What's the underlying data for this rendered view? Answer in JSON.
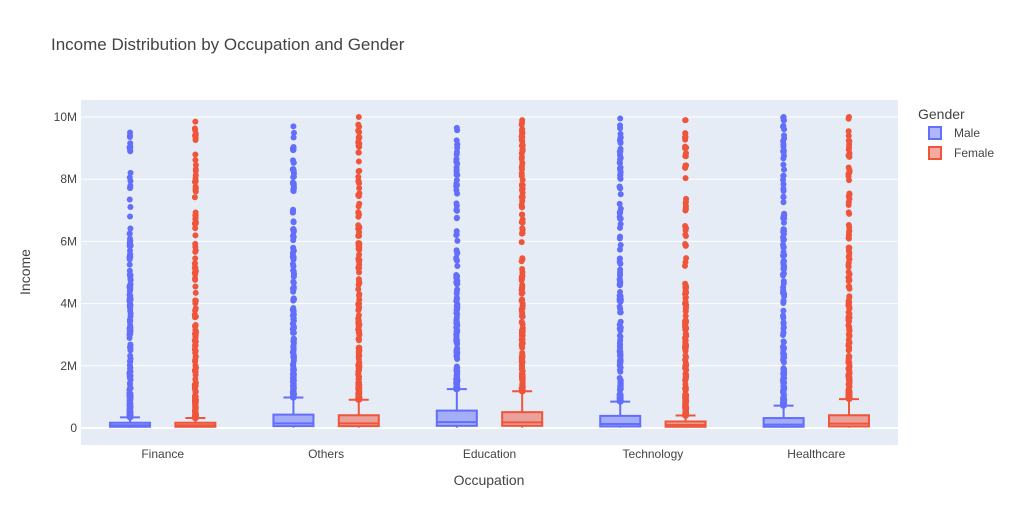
{
  "chart_data": {
    "type": "box",
    "title": "Income Distribution by Occupation and Gender",
    "xlabel": "Occupation",
    "ylabel": "Income",
    "ylim": [
      -500000,
      10500000
    ],
    "yticks": [
      {
        "value": 0,
        "label": "0"
      },
      {
        "value": 2000000,
        "label": "2M"
      },
      {
        "value": 4000000,
        "label": "4M"
      },
      {
        "value": 6000000,
        "label": "6M"
      },
      {
        "value": 8000000,
        "label": "8M"
      },
      {
        "value": 10000000,
        "label": "10M"
      }
    ],
    "categories": [
      "Finance",
      "Others",
      "Education",
      "Technology",
      "Healthcare"
    ],
    "legend": {
      "title": "Gender",
      "position": "right"
    },
    "series": [
      {
        "name": "Male",
        "color": "#636efa",
        "boxes": [
          {
            "min": 10000,
            "q1": 40000,
            "median": 90000,
            "q3": 170000,
            "upper_fence": 340000,
            "outlier_max": 9500000
          },
          {
            "min": 10000,
            "q1": 60000,
            "median": 150000,
            "q3": 430000,
            "upper_fence": 980000,
            "outlier_max": 9700000
          },
          {
            "min": 10000,
            "q1": 70000,
            "median": 190000,
            "q3": 560000,
            "upper_fence": 1250000,
            "outlier_max": 9650000
          },
          {
            "min": 10000,
            "q1": 50000,
            "median": 130000,
            "q3": 390000,
            "upper_fence": 850000,
            "outlier_max": 9950000
          },
          {
            "min": 10000,
            "q1": 40000,
            "median": 110000,
            "q3": 320000,
            "upper_fence": 720000,
            "outlier_max": 10000000
          }
        ]
      },
      {
        "name": "Female",
        "color": "#ef553b",
        "boxes": [
          {
            "min": 10000,
            "q1": 40000,
            "median": 90000,
            "q3": 170000,
            "upper_fence": 320000,
            "outlier_max": 9850000
          },
          {
            "min": 10000,
            "q1": 60000,
            "median": 150000,
            "q3": 410000,
            "upper_fence": 910000,
            "outlier_max": 10000000
          },
          {
            "min": 10000,
            "q1": 70000,
            "median": 180000,
            "q3": 510000,
            "upper_fence": 1180000,
            "outlier_max": 9900000
          },
          {
            "min": 10000,
            "q1": 40000,
            "median": 100000,
            "q3": 210000,
            "upper_fence": 400000,
            "outlier_max": 9900000
          },
          {
            "min": 10000,
            "q1": 50000,
            "median": 140000,
            "q3": 410000,
            "upper_fence": 930000,
            "outlier_max": 10000000
          }
        ]
      }
    ]
  }
}
